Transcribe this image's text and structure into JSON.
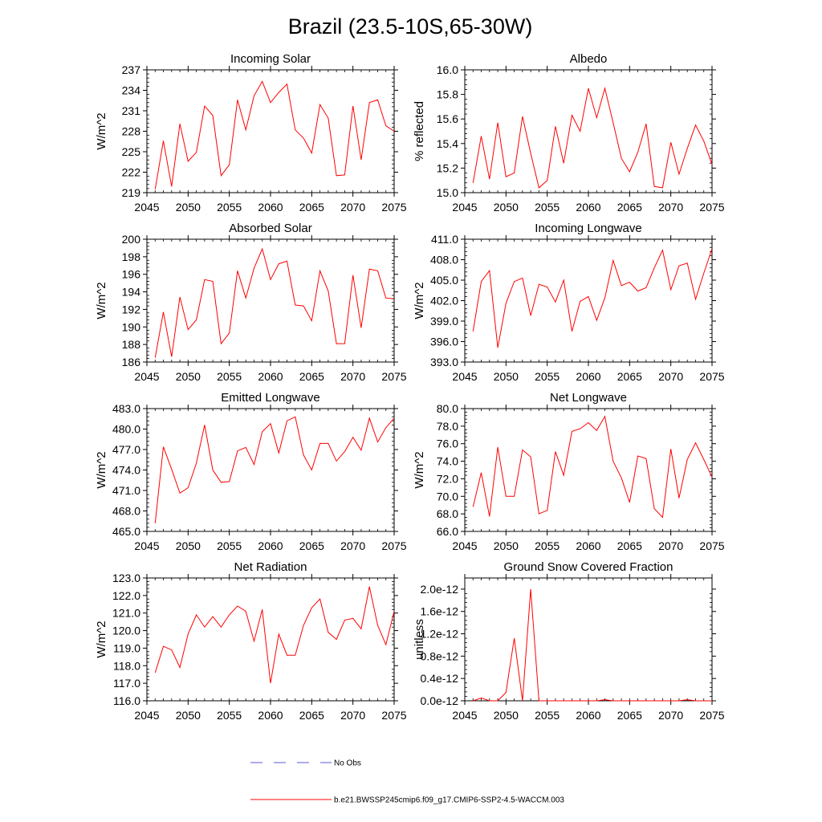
{
  "figure": {
    "title": "Brazil (23.5-10S,65-30W)",
    "legend": {
      "entries": [
        {
          "label": "No Obs",
          "style": "dashed",
          "color": "#5a5ad6"
        },
        {
          "label": "b.e21.BWSSP245cmip6.f09_g17.CMIP6-SSP2-4.5-WACCM.003",
          "style": "solid",
          "color": "#ff0000"
        }
      ]
    },
    "series_color": "#ff0000"
  },
  "chart_data": [
    {
      "type": "line",
      "title": "Incoming Solar",
      "ylabel": "W/m^2",
      "xlim": [
        2045,
        2075
      ],
      "ylim": [
        219,
        237
      ],
      "xticks": [
        2045,
        2050,
        2055,
        2060,
        2065,
        2070,
        2075
      ],
      "yticks": [
        "219",
        "222",
        "225",
        "228",
        "231",
        "234",
        "237"
      ],
      "ytick_values": [
        219,
        222,
        225,
        228,
        231,
        234,
        237
      ],
      "x": [
        2046,
        2047,
        2048,
        2049,
        2050,
        2051,
        2052,
        2053,
        2054,
        2055,
        2056,
        2057,
        2058,
        2059,
        2060,
        2061,
        2062,
        2063,
        2064,
        2065,
        2066,
        2067,
        2068,
        2069,
        2070,
        2071,
        2072,
        2073,
        2074,
        2075
      ],
      "values": [
        219.5,
        226.6,
        219.9,
        229.1,
        223.6,
        224.9,
        231.7,
        230.3,
        221.5,
        223.1,
        232.6,
        228.2,
        233.2,
        235.3,
        232.2,
        233.7,
        234.9,
        228.2,
        227.0,
        224.8,
        231.9,
        229.9,
        221.5,
        221.6,
        231.7,
        223.8,
        232.2,
        232.6,
        228.8,
        228.0
      ]
    },
    {
      "type": "line",
      "title": "Albedo",
      "ylabel": "% reflected",
      "xlim": [
        2045,
        2075
      ],
      "ylim": [
        15.0,
        16.0
      ],
      "xticks": [
        2045,
        2050,
        2055,
        2060,
        2065,
        2070,
        2075
      ],
      "yticks": [
        "15.0",
        "15.2",
        "15.4",
        "15.6",
        "15.8",
        "16.0"
      ],
      "ytick_values": [
        15.0,
        15.2,
        15.4,
        15.6,
        15.8,
        16.0
      ],
      "x": [
        2046,
        2047,
        2048,
        2049,
        2050,
        2051,
        2052,
        2053,
        2054,
        2055,
        2056,
        2057,
        2058,
        2059,
        2060,
        2061,
        2062,
        2063,
        2064,
        2065,
        2066,
        2067,
        2068,
        2069,
        2070,
        2071,
        2072,
        2073,
        2074,
        2075
      ],
      "values": [
        15.08,
        15.46,
        15.11,
        15.57,
        15.13,
        15.16,
        15.62,
        15.32,
        15.04,
        15.1,
        15.54,
        15.24,
        15.63,
        15.5,
        15.85,
        15.61,
        15.85,
        15.57,
        15.28,
        15.17,
        15.33,
        15.56,
        15.05,
        15.04,
        15.41,
        15.15,
        15.36,
        15.55,
        15.42,
        15.23
      ]
    },
    {
      "type": "line",
      "title": "Absorbed Solar",
      "ylabel": "W/m^2",
      "xlim": [
        2045,
        2075
      ],
      "ylim": [
        186,
        200
      ],
      "xticks": [
        2045,
        2050,
        2055,
        2060,
        2065,
        2070,
        2075
      ],
      "yticks": [
        "186",
        "188",
        "190",
        "192",
        "194",
        "196",
        "198",
        "200"
      ],
      "ytick_values": [
        186,
        188,
        190,
        192,
        194,
        196,
        198,
        200
      ],
      "x": [
        2046,
        2047,
        2048,
        2049,
        2050,
        2051,
        2052,
        2053,
        2054,
        2055,
        2056,
        2057,
        2058,
        2059,
        2060,
        2061,
        2062,
        2063,
        2064,
        2065,
        2066,
        2067,
        2068,
        2069,
        2070,
        2071,
        2072,
        2073,
        2074,
        2075
      ],
      "values": [
        186.5,
        191.7,
        186.6,
        193.4,
        189.7,
        190.8,
        195.4,
        195.2,
        188.1,
        189.3,
        196.4,
        193.3,
        196.7,
        198.9,
        195.4,
        197.2,
        197.5,
        192.5,
        192.4,
        190.7,
        196.4,
        194.1,
        188.1,
        188.1,
        195.9,
        189.9,
        196.6,
        196.4,
        193.3,
        193.2
      ]
    },
    {
      "type": "line",
      "title": "Incoming Longwave",
      "ylabel": "W/m^2",
      "xlim": [
        2045,
        2075
      ],
      "ylim": [
        393.0,
        411.0
      ],
      "xticks": [
        2045,
        2050,
        2055,
        2060,
        2065,
        2070,
        2075
      ],
      "yticks": [
        "393.0",
        "396.0",
        "399.0",
        "402.0",
        "405.0",
        "408.0",
        "411.0"
      ],
      "ytick_values": [
        393,
        396,
        399,
        402,
        405,
        408,
        411
      ],
      "x": [
        2046,
        2047,
        2048,
        2049,
        2050,
        2051,
        2052,
        2053,
        2054,
        2055,
        2056,
        2057,
        2058,
        2059,
        2060,
        2061,
        2062,
        2063,
        2064,
        2065,
        2066,
        2067,
        2068,
        2069,
        2070,
        2071,
        2072,
        2073,
        2074,
        2075
      ],
      "values": [
        397.5,
        404.8,
        406.4,
        395.1,
        401.6,
        404.8,
        405.3,
        399.8,
        404.4,
        404.0,
        401.8,
        405.0,
        397.5,
        401.9,
        402.6,
        399.1,
        402.4,
        407.9,
        404.2,
        404.7,
        403.4,
        403.9,
        406.8,
        409.4,
        403.6,
        407.1,
        407.5,
        402.2,
        406.0,
        409.6
      ]
    },
    {
      "type": "line",
      "title": "Emitted Longwave",
      "ylabel": "W/m^2",
      "xlim": [
        2045,
        2075
      ],
      "ylim": [
        465.0,
        483.0
      ],
      "xticks": [
        2045,
        2050,
        2055,
        2060,
        2065,
        2070,
        2075
      ],
      "yticks": [
        "465.0",
        "468.0",
        "471.0",
        "474.0",
        "477.0",
        "480.0",
        "483.0"
      ],
      "ytick_values": [
        465,
        468,
        471,
        474,
        477,
        480,
        483
      ],
      "x": [
        2046,
        2047,
        2048,
        2049,
        2050,
        2051,
        2052,
        2053,
        2054,
        2055,
        2056,
        2057,
        2058,
        2059,
        2060,
        2061,
        2062,
        2063,
        2064,
        2065,
        2066,
        2067,
        2068,
        2069,
        2070,
        2071,
        2072,
        2073,
        2074,
        2075
      ],
      "values": [
        466.2,
        477.4,
        474.1,
        470.6,
        471.4,
        475.0,
        480.6,
        474.0,
        472.2,
        472.3,
        476.8,
        477.3,
        474.8,
        479.6,
        480.8,
        476.5,
        481.2,
        481.8,
        476.2,
        474.0,
        477.9,
        477.9,
        475.3,
        476.7,
        478.8,
        476.9,
        481.6,
        478.1,
        480.2,
        481.6
      ]
    },
    {
      "type": "line",
      "title": "Net Longwave",
      "ylabel": "W/m^2",
      "xlim": [
        2045,
        2075
      ],
      "ylim": [
        66.0,
        80.0
      ],
      "xticks": [
        2045,
        2050,
        2055,
        2060,
        2065,
        2070,
        2075
      ],
      "yticks": [
        "66.0",
        "68.0",
        "70.0",
        "72.0",
        "74.0",
        "76.0",
        "78.0",
        "80.0"
      ],
      "ytick_values": [
        66,
        68,
        70,
        72,
        74,
        76,
        78,
        80
      ],
      "x": [
        2046,
        2047,
        2048,
        2049,
        2050,
        2051,
        2052,
        2053,
        2054,
        2055,
        2056,
        2057,
        2058,
        2059,
        2060,
        2061,
        2062,
        2063,
        2064,
        2065,
        2066,
        2067,
        2068,
        2069,
        2070,
        2071,
        2072,
        2073,
        2074,
        2075
      ],
      "values": [
        68.8,
        72.7,
        67.7,
        75.6,
        70.0,
        70.0,
        75.3,
        74.5,
        68.0,
        68.4,
        75.1,
        72.4,
        77.4,
        77.7,
        78.4,
        77.5,
        79.1,
        74.0,
        72.1,
        69.3,
        74.6,
        74.3,
        68.6,
        67.6,
        75.4,
        69.8,
        74.2,
        76.1,
        74.2,
        72.2
      ]
    },
    {
      "type": "line",
      "title": "Net Radiation",
      "ylabel": "W/m^2",
      "xlim": [
        2045,
        2075
      ],
      "ylim": [
        116.0,
        123.0
      ],
      "xticks": [
        2045,
        2050,
        2055,
        2060,
        2065,
        2070,
        2075
      ],
      "yticks": [
        "116.0",
        "117.0",
        "118.0",
        "119.0",
        "120.0",
        "121.0",
        "122.0",
        "123.0"
      ],
      "ytick_values": [
        116,
        117,
        118,
        119,
        120,
        121,
        122,
        123
      ],
      "x": [
        2046,
        2047,
        2048,
        2049,
        2050,
        2051,
        2052,
        2053,
        2054,
        2055,
        2056,
        2057,
        2058,
        2059,
        2060,
        2061,
        2062,
        2063,
        2064,
        2065,
        2066,
        2067,
        2068,
        2069,
        2070,
        2071,
        2072,
        2073,
        2074,
        2075
      ],
      "values": [
        117.6,
        119.1,
        118.9,
        117.9,
        119.8,
        120.9,
        120.2,
        120.8,
        120.2,
        120.9,
        121.4,
        121.1,
        119.4,
        121.2,
        117.0,
        119.8,
        118.6,
        118.6,
        120.3,
        121.3,
        121.8,
        119.9,
        119.5,
        120.6,
        120.7,
        120.1,
        122.5,
        120.3,
        119.2,
        121.1
      ]
    },
    {
      "type": "line",
      "title": "Ground Snow Covered Fraction",
      "ylabel": "unitless",
      "xlim": [
        2045,
        2075
      ],
      "ylim": [
        0.0,
        2.2
      ],
      "xticks": [
        2045,
        2050,
        2055,
        2060,
        2065,
        2070,
        2075
      ],
      "yticks": [
        "0.0e-12",
        "0.4e-12",
        "0.8e-12",
        "1.2e-12",
        "1.6e-12",
        "2.0e-12"
      ],
      "ytick_values": [
        0.0,
        0.4,
        0.8,
        1.2,
        1.6,
        2.0
      ],
      "y_scale_note": "values in units of 1e-12",
      "x": [
        2046,
        2047,
        2048,
        2049,
        2050,
        2051,
        2052,
        2053,
        2054,
        2055,
        2056,
        2057,
        2058,
        2059,
        2060,
        2061,
        2062,
        2063,
        2064,
        2065,
        2066,
        2067,
        2068,
        2069,
        2070,
        2071,
        2072,
        2073,
        2074,
        2075
      ],
      "values": [
        0.0,
        0.05,
        0.0,
        0.0,
        0.15,
        1.12,
        0.0,
        2.0,
        0.0,
        0.0,
        0.0,
        0.0,
        0.0,
        0.0,
        0.0,
        0.0,
        0.02,
        0.0,
        0.0,
        0.0,
        0.0,
        0.0,
        0.0,
        0.0,
        0.0,
        0.0,
        0.02,
        0.0,
        0.0,
        0.0
      ]
    }
  ]
}
